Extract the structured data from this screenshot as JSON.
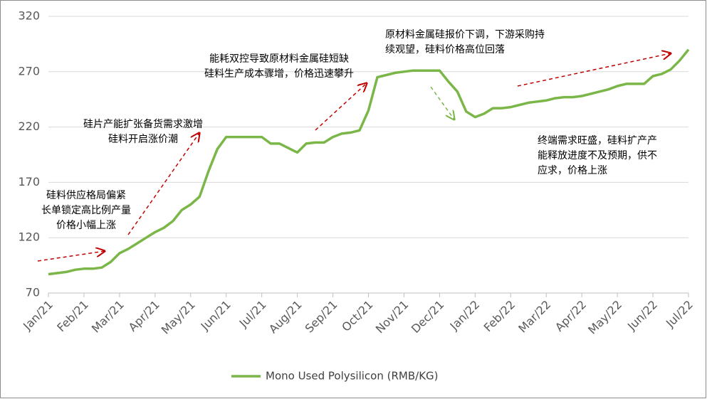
{
  "chart_data": {
    "type": "line",
    "categories": [
      "Jan/21",
      null,
      null,
      null,
      "Feb/21",
      null,
      null,
      null,
      "Mar/21",
      null,
      null,
      null,
      "Apr/21",
      null,
      null,
      null,
      "May/21",
      null,
      null,
      null,
      "Jun/21",
      null,
      null,
      null,
      "Jul/21",
      null,
      null,
      null,
      "Aug/21",
      null,
      null,
      null,
      "Sep/21",
      null,
      null,
      null,
      "Oct/21",
      null,
      null,
      null,
      "Nov/21",
      null,
      null,
      null,
      "Dec/21",
      null,
      null,
      null,
      "Jan/22",
      null,
      null,
      null,
      "Feb/22",
      null,
      null,
      null,
      "Mar/22",
      null,
      null,
      null,
      "Apr/22",
      null,
      null,
      null,
      "May/22",
      null,
      null,
      null,
      "Jun/22",
      null,
      null,
      null,
      "Jul/22"
    ],
    "series": [
      {
        "name": "Mono Used Polysilicon (RMB/KG)",
        "color": "#7ab648",
        "values": [
          87,
          88,
          89,
          91,
          92,
          92,
          93,
          98,
          106,
          110,
          115,
          120,
          125,
          129,
          135,
          145,
          150,
          157,
          180,
          200,
          211,
          211,
          211,
          211,
          211,
          205,
          205,
          201,
          197,
          205,
          206,
          206,
          211,
          214,
          215,
          217,
          235,
          265,
          267,
          269,
          270,
          271,
          271,
          271,
          271,
          261,
          252,
          234,
          229,
          232,
          237,
          237,
          238,
          240,
          242,
          243,
          244,
          246,
          247,
          247,
          248,
          250,
          252,
          254,
          257,
          259,
          259,
          259,
          266,
          268,
          272,
          280,
          290
        ]
      }
    ],
    "ylim": [
      70,
      320
    ],
    "yticks": [
      70,
      120,
      170,
      220,
      270,
      320
    ],
    "grid": true,
    "legend": "bottom",
    "annotations": [
      {
        "lines": [
          "硅料供应格局偏紧",
          "长单锁定高比例产量",
          "价格小幅上涨"
        ]
      },
      {
        "lines": [
          "硅片产能扩张备货需求激增",
          "硅料开启涨价潮"
        ]
      },
      {
        "lines": [
          "能耗双控导致原材料金属硅短缺",
          "硅料生产成本骤增，价格迅速攀升"
        ]
      },
      {
        "lines": [
          "原材料金属硅报价下调，下游采购持",
          "续观望，硅料价格高位回落"
        ]
      },
      {
        "lines": [
          "终端需求旺盛，硅料扩产产",
          "能释放进度不及预期，供不",
          "应求，价格上涨"
        ]
      }
    ]
  }
}
